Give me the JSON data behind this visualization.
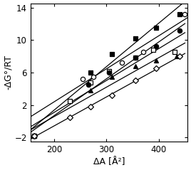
{
  "title": "",
  "xlabel": "ΔA [Å²]",
  "ylabel": "-ΔG°/RT",
  "xlim": [
    155,
    455
  ],
  "ylim": [
    -2.5,
    14.5
  ],
  "xticks": [
    200,
    300,
    400
  ],
  "yticks": [
    -2,
    2,
    6,
    10,
    14
  ],
  "lines": [
    {
      "label": "filled_square_top",
      "marker": "s",
      "filled": true,
      "x": [
        162,
        270,
        310,
        355,
        395,
        440
      ],
      "y": [
        -1.8,
        6.0,
        8.3,
        10.2,
        11.5,
        13.2
      ],
      "fit_x": [
        155,
        450
      ]
    },
    {
      "label": "open_circle_top",
      "marker": "o",
      "filled": false,
      "x": [
        255,
        275,
        330,
        370,
        450
      ],
      "y": [
        5.2,
        5.5,
        7.2,
        8.5,
        13.2
      ],
      "fit_x": [
        155,
        455
      ]
    },
    {
      "label": "open_square",
      "marker": "s",
      "filled": false,
      "x": [
        162,
        230,
        270,
        305,
        355,
        390,
        430
      ],
      "y": [
        -1.8,
        2.5,
        4.8,
        6.2,
        7.8,
        8.8,
        8.5
      ],
      "fit_x": [
        155,
        450
      ]
    },
    {
      "label": "filled_circle",
      "marker": "o",
      "filled": true,
      "x": [
        162,
        265,
        305,
        355,
        395,
        440
      ],
      "y": [
        -1.8,
        4.5,
        6.0,
        7.8,
        9.2,
        11.2
      ],
      "fit_x": [
        155,
        450
      ]
    },
    {
      "label": "filled_triangle",
      "marker": "^",
      "filled": true,
      "x": [
        162,
        270,
        310,
        355,
        395,
        435
      ],
      "y": [
        -1.8,
        3.8,
        5.5,
        6.8,
        7.5,
        8.0
      ],
      "fit_x": [
        155,
        450
      ]
    },
    {
      "label": "open_diamond_bottom",
      "marker": "D",
      "filled": false,
      "x": [
        162,
        230,
        270,
        310,
        355,
        395,
        440
      ],
      "y": [
        -1.8,
        0.5,
        1.8,
        3.2,
        5.0,
        6.5,
        8.0
      ],
      "fit_x": [
        155,
        450
      ]
    }
  ]
}
